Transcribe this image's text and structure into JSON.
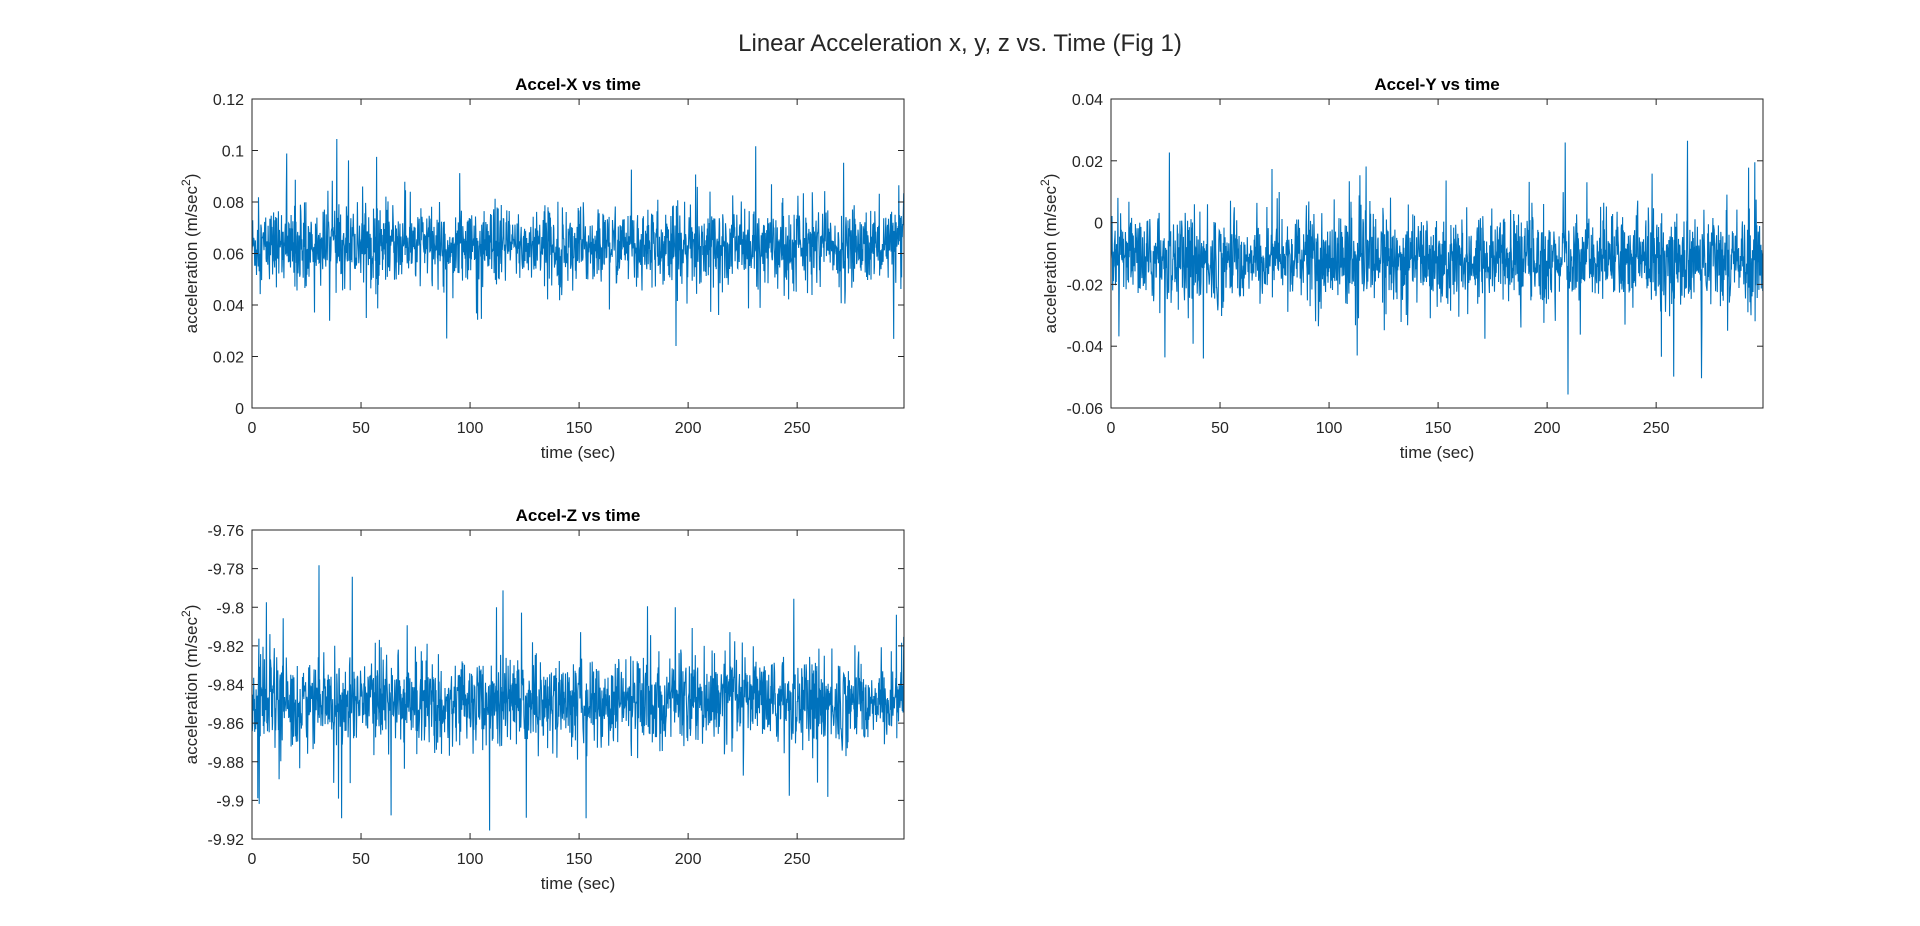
{
  "figure": {
    "title": "Linear Acceleration x, y, z vs. Time (Fig 1)",
    "line_color": "#0072BD"
  },
  "chart_data": [
    {
      "type": "line",
      "title": "Accel-X vs time",
      "xlabel": "time (sec)",
      "ylabel": "acceleration (m/sec",
      "ylabel_sup": "2",
      "ylabel_close": ")",
      "xlim": [
        0,
        299
      ],
      "ylim": [
        0,
        0.12
      ],
      "xticks": [
        0,
        50,
        100,
        150,
        200,
        250
      ],
      "xtick_labels": [
        "0",
        "50",
        "100",
        "150",
        "200",
        "250"
      ],
      "yticks": [
        0,
        0.02,
        0.04,
        0.06,
        0.08,
        0.1,
        0.12
      ],
      "ytick_labels": [
        "0",
        "0.02",
        "0.04",
        "0.06",
        "0.08",
        "0.1",
        "0.12"
      ],
      "grid": false,
      "series": [
        {
          "mean": 0.063,
          "core_spread": 0.013,
          "min": 0.017,
          "max": 0.105
        }
      ]
    },
    {
      "type": "line",
      "title": "Accel-Y vs time",
      "xlabel": "time (sec)",
      "ylabel": "acceleration (m/sec",
      "ylabel_sup": "2",
      "ylabel_close": ")",
      "xlim": [
        0,
        299
      ],
      "ylim": [
        -0.06,
        0.04
      ],
      "xticks": [
        0,
        50,
        100,
        150,
        200,
        250
      ],
      "xtick_labels": [
        "0",
        "50",
        "100",
        "150",
        "200",
        "250"
      ],
      "yticks": [
        -0.06,
        -0.04,
        -0.02,
        0,
        0.02,
        0.04
      ],
      "ytick_labels": [
        "-0.06",
        "-0.04",
        "-0.02",
        "0",
        "0.02",
        "0.04"
      ],
      "grid": false,
      "series": [
        {
          "mean": -0.012,
          "core_spread": 0.013,
          "min": -0.06,
          "max": 0.029
        }
      ]
    },
    {
      "type": "line",
      "title": "Accel-Z vs time",
      "xlabel": "time (sec)",
      "ylabel": "acceleration (m/sec",
      "ylabel_sup": "2",
      "ylabel_close": ")",
      "xlim": [
        0,
        299
      ],
      "ylim": [
        -9.92,
        -9.76
      ],
      "xticks": [
        0,
        50,
        100,
        150,
        200,
        250
      ],
      "xtick_labels": [
        "0",
        "50",
        "100",
        "150",
        "200",
        "250"
      ],
      "yticks": [
        -9.92,
        -9.9,
        -9.88,
        -9.86,
        -9.84,
        -9.82,
        -9.8,
        -9.78,
        -9.76
      ],
      "ytick_labels": [
        "-9.92",
        "-9.9",
        "-9.88",
        "-9.86",
        "-9.84",
        "-9.82",
        "-9.8",
        "-9.78",
        "-9.76"
      ],
      "grid": false,
      "series": [
        {
          "mean": -9.849,
          "core_spread": 0.02,
          "min": -9.917,
          "max": -9.776
        }
      ]
    }
  ]
}
